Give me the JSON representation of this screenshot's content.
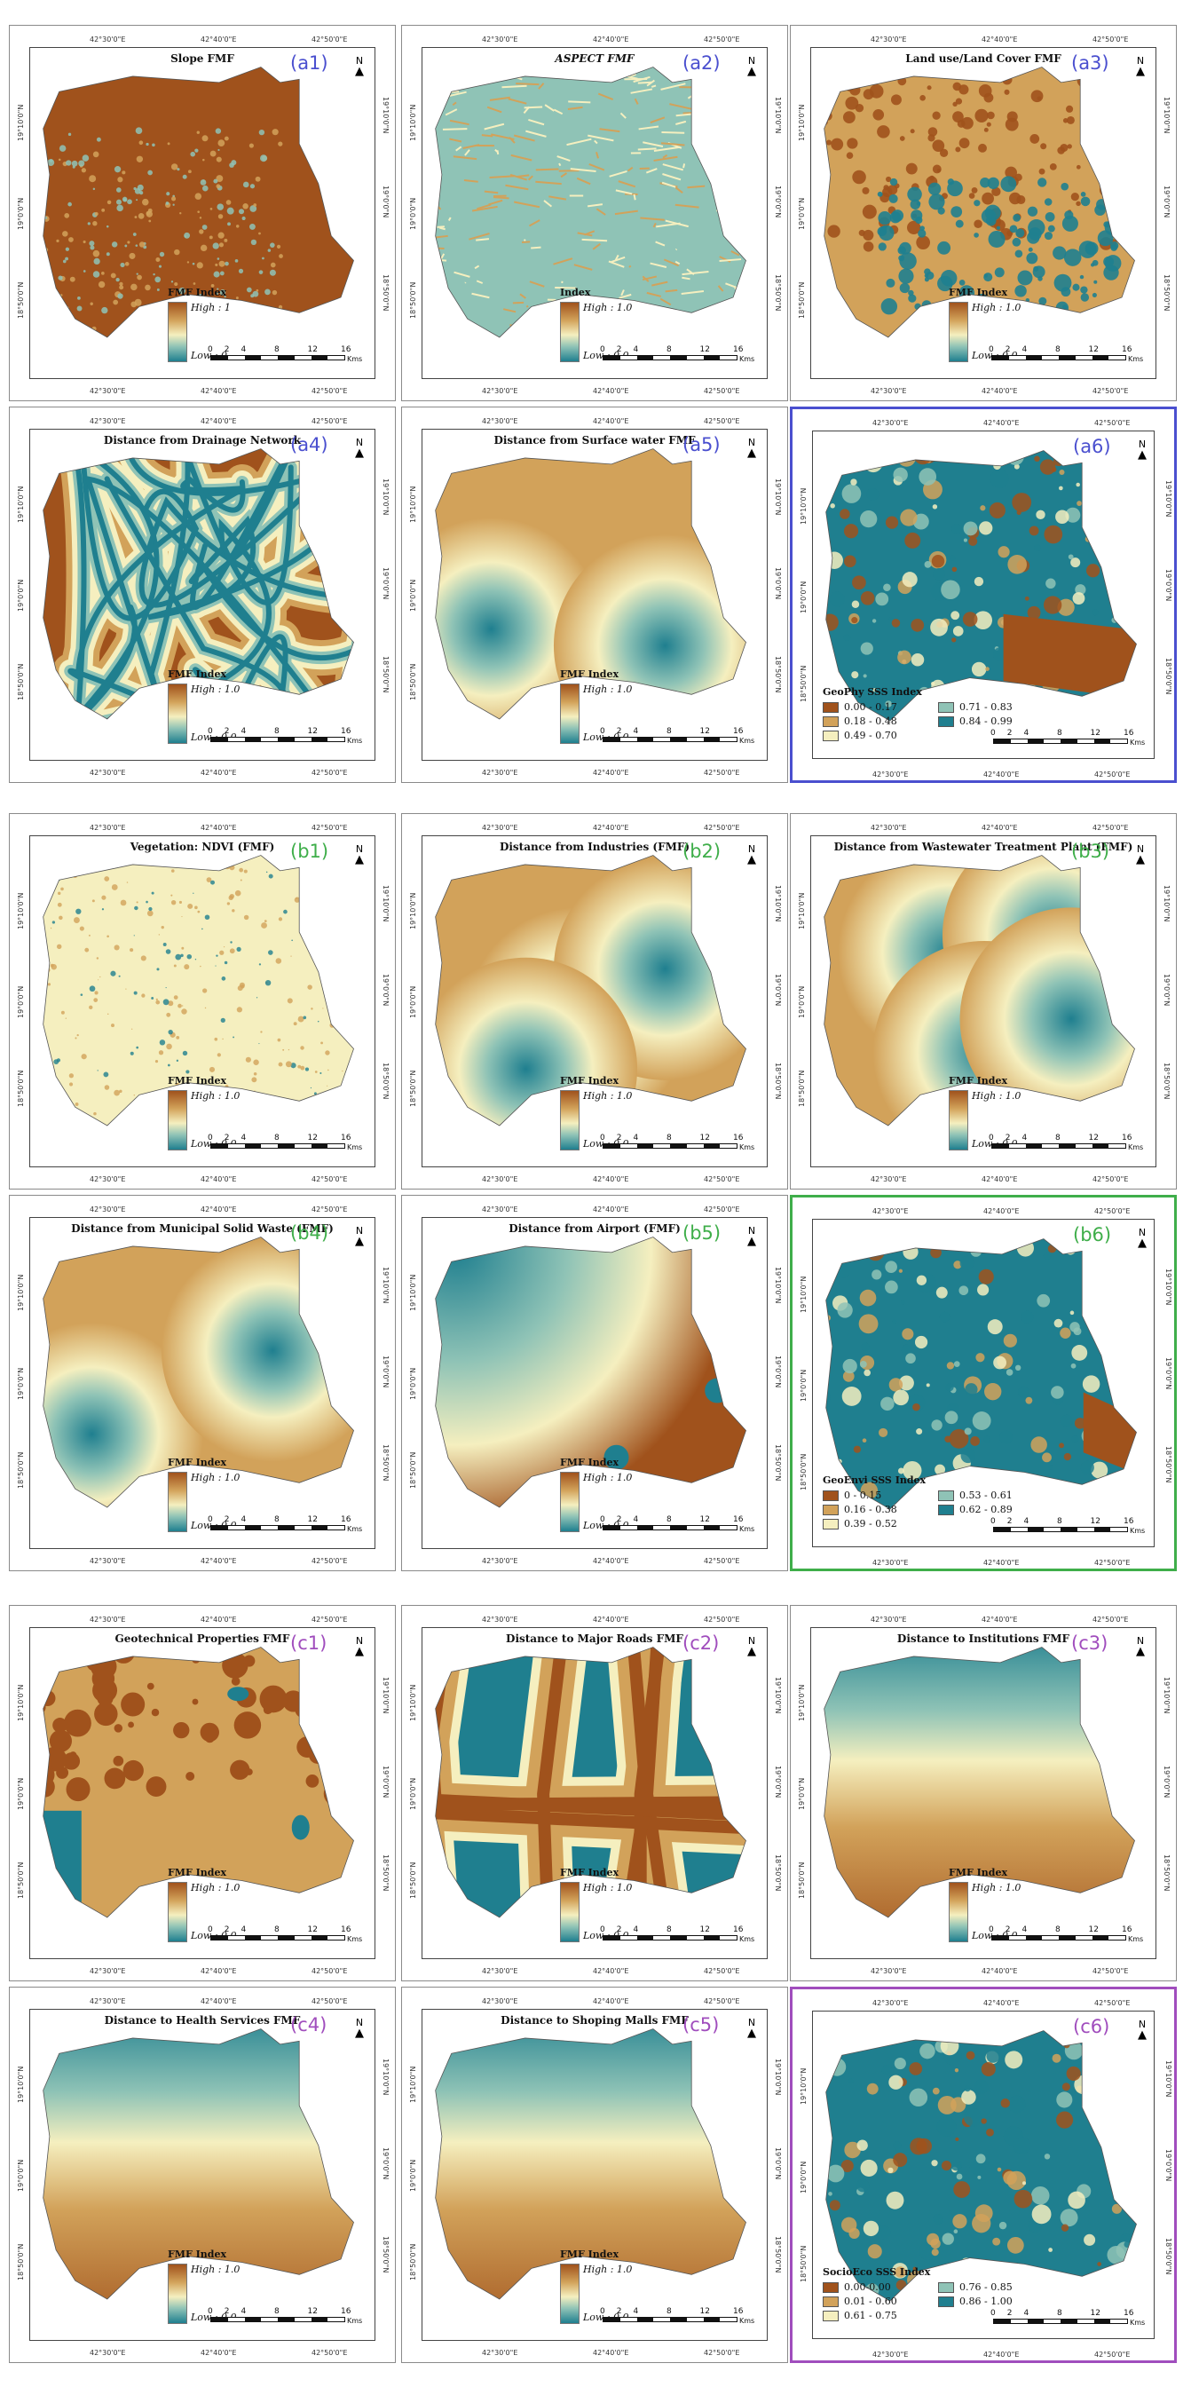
{
  "coords": {
    "top": [
      "42°30'0\"E",
      "42°40'0\"E",
      "42°50'0\"E"
    ],
    "left": [
      "19°10'0\"N",
      "19°0'0\"N",
      "18°50'0\"N"
    ],
    "right": [
      "19°10'0\"N",
      "19°0'0\"N",
      "18°50'0\"N"
    ]
  },
  "north_arrow": "N",
  "scale": {
    "ticks": [
      "0",
      "2",
      "4",
      "8",
      "12",
      "16"
    ],
    "unit": "Kms"
  },
  "colors": {
    "brown": "#a0521c",
    "tan": "#d2a25a",
    "cream": "#f5efbf",
    "lightteal": "#8fc3b6",
    "teal": "#1f7f8f",
    "label_a": "#4a4fcf",
    "label_b": "#3fae4a",
    "label_c": "#a04dbd"
  },
  "panels": [
    {
      "id": "a1",
      "title": "Slope FMF",
      "label": "(a1)",
      "group": "a",
      "pattern": "slope",
      "legend": {
        "title": "FMF Index",
        "high": "High : 1",
        "low": "Low : 0"
      }
    },
    {
      "id": "a2",
      "title": "ASPECT FMF",
      "label": "(a2)",
      "group": "a",
      "pattern": "aspect",
      "legend": {
        "title": "Index",
        "high": "High : 1.0",
        "low": "Low : 0.0"
      }
    },
    {
      "id": "a3",
      "title": "Land use/Land Cover FMF",
      "label": "(a3)",
      "group": "a",
      "pattern": "landuse",
      "legend": {
        "title": "FMF Index",
        "high": "High : 1.0",
        "low": "Low : 0.0"
      }
    },
    {
      "id": "a4",
      "title": "Distance from Drainage Network",
      "label": "(a4)",
      "group": "a",
      "pattern": "drainage",
      "legend": {
        "title": "FMF Index",
        "high": "High : 1.0",
        "low": "Low : 0.0"
      }
    },
    {
      "id": "a5",
      "title": "Distance from Surface water FMF",
      "label": "(a5)",
      "group": "a",
      "pattern": "surface",
      "legend": {
        "title": "FMF Index",
        "high": "High : 1.0",
        "low": "Low : 0.0"
      }
    },
    {
      "id": "a6",
      "title": "",
      "label": "(a6)",
      "group": "a",
      "pattern": "geophy",
      "highlight": true,
      "legend": {
        "title": "GeoPhy SSS Index",
        "classes": [
          "0.00 - 0.17",
          "0.71 - 0.83",
          "0.18 - 0.48",
          "0.84 - 0.99",
          "0.49 - 0.70"
        ]
      }
    },
    {
      "id": "b1",
      "title": "Vegetation: NDVI (FMF)",
      "label": "(b1)",
      "group": "b",
      "pattern": "ndvi",
      "legend": {
        "title": "FMF Index",
        "high": "High : 1.0",
        "low": "Low : 0.0"
      }
    },
    {
      "id": "b2",
      "title": "Distance from Industries (FMF)",
      "label": "(b2)",
      "group": "b",
      "pattern": "industries",
      "legend": {
        "title": "FMF Index",
        "high": "High : 1.0",
        "low": "Low : 0.0"
      }
    },
    {
      "id": "b3",
      "title": "Distance from Wastewater Treatment Plant (FMF)",
      "label": "(b3)",
      "group": "b",
      "pattern": "wwtp",
      "legend": {
        "title": "FMF Index",
        "high": "High : 1.0",
        "low": "Low : 0.0"
      }
    },
    {
      "id": "b4",
      "title": "Distance from Municipal Solid Waste (FMF)",
      "label": "(b4)",
      "group": "b",
      "pattern": "msw",
      "legend": {
        "title": "FMF Index",
        "high": "High : 1.0",
        "low": "Low : 0.0"
      }
    },
    {
      "id": "b5",
      "title": "Distance from Airport (FMF)",
      "label": "(b5)",
      "group": "b",
      "pattern": "airport",
      "legend": {
        "title": "FMF Index",
        "high": "High : 1.0",
        "low": "Low : 0.0"
      }
    },
    {
      "id": "b6",
      "title": "",
      "label": "(b6)",
      "group": "b",
      "pattern": "geoenvi",
      "highlight": true,
      "legend": {
        "title": "GeoEnvi SSS Index",
        "classes": [
          "0 - 0.15",
          "0.53 - 0.61",
          "0.16 - 0.38",
          "0.62 - 0.89",
          "0.39 - 0.52"
        ]
      }
    },
    {
      "id": "c1",
      "title": "Geotechnical Properties FMF",
      "label": "(c1)",
      "group": "c",
      "pattern": "geotech",
      "legend": {
        "title": "FMF Index",
        "high": "High : 1.0",
        "low": "Low : 0.0"
      }
    },
    {
      "id": "c2",
      "title": "Distance to Major Roads FMF",
      "label": "(c2)",
      "group": "c",
      "pattern": "roads",
      "legend": {
        "title": "FMF Index",
        "high": "High : 1.0",
        "low": "Low : 0.0"
      }
    },
    {
      "id": "c3",
      "title": "Distance to Institutions FMF",
      "label": "(c3)",
      "group": "c",
      "pattern": "institutions",
      "legend": {
        "title": "FMF Index",
        "high": "High : 1.0",
        "low": "Low : 0.0"
      }
    },
    {
      "id": "c4",
      "title": "Distance to Health Services FMF",
      "label": "(c4)",
      "group": "c",
      "pattern": "health",
      "legend": {
        "title": "FMF Index",
        "high": "High : 1.0",
        "low": "Low : 0.0"
      }
    },
    {
      "id": "c5",
      "title": "Distance to Shoping Malls FMF",
      "label": "(c5)",
      "group": "c",
      "pattern": "malls",
      "legend": {
        "title": "FMF Index",
        "high": "High : 1.0",
        "low": "Low : 0.0"
      }
    },
    {
      "id": "c6",
      "title": "",
      "label": "(c6)",
      "group": "c",
      "pattern": "socioeco",
      "highlight": true,
      "legend": {
        "title": "SocioEco SSS Index",
        "classes": [
          "0.00-0.00",
          "0.76 - 0.85",
          "0.01 - 0.60",
          "0.86 - 1.00",
          "0.61 - 0.75"
        ]
      }
    }
  ]
}
